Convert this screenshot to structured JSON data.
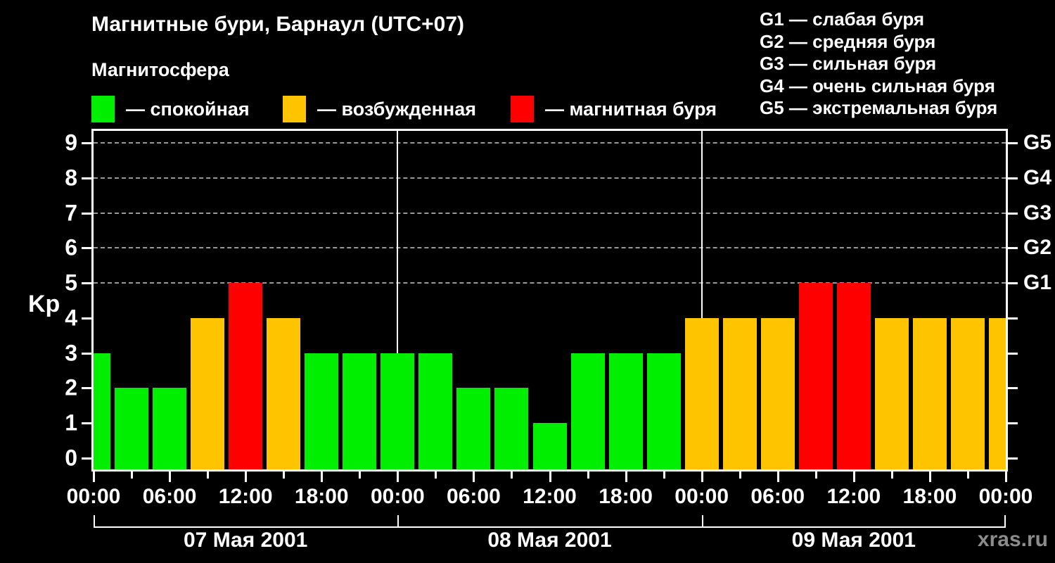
{
  "title": "Магнитные бури, Барнаул (UTC+07)",
  "subtitle": "Магнитосфера",
  "legend": {
    "items": [
      {
        "key": "quiet",
        "label": "— спокойная",
        "color": "#00ee00"
      },
      {
        "key": "excited",
        "label": "— возбужденная",
        "color": "#ffc400"
      },
      {
        "key": "storm",
        "label": "— магнитная буря",
        "color": "#ff0000"
      }
    ]
  },
  "storm_scale": [
    "G1 — слабая буря",
    "G2 — средняя буря",
    "G3 — сильная буря",
    "G4 — очень сильная буря",
    "G5 — экстремальная буря"
  ],
  "watermark": "xras.ru",
  "chart_data": {
    "type": "bar",
    "title": "Магнитные бури, Барнаул (UTC+07)",
    "ylabel": "Kp",
    "ylim": [
      0,
      9
    ],
    "x_unit": "hours from 07 Мая 2001 00:00 local (UTC+07)",
    "bar_interval_hours": 3,
    "bar_center_hours": [
      0,
      3,
      6,
      9,
      12,
      15,
      18,
      21,
      24,
      27,
      30,
      33,
      36,
      39,
      42,
      45,
      48,
      51,
      54,
      57,
      60,
      63,
      66,
      69,
      72
    ],
    "kp_values": [
      3,
      2,
      2,
      4,
      5,
      4,
      3,
      3,
      3,
      3,
      2,
      2,
      1,
      3,
      3,
      3,
      4,
      4,
      4,
      5,
      5,
      4,
      4,
      4,
      4
    ],
    "colors": {
      "quiet": "#00ee00",
      "excited": "#ffc400",
      "storm": "#ff0000"
    },
    "color_rules": {
      "quiet_max": 3,
      "excited_value": 4,
      "storm_min": 5
    },
    "grid": "dashed horizontal at Kp 5–9",
    "grid_levels": [
      5,
      6,
      7,
      8,
      9
    ],
    "ytick_labels": [
      "0",
      "1",
      "2",
      "3",
      "4",
      "5",
      "6",
      "7",
      "8",
      "9"
    ],
    "right_labels": [
      {
        "value": 5,
        "label": "G1"
      },
      {
        "value": 6,
        "label": "G2"
      },
      {
        "value": 7,
        "label": "G3"
      },
      {
        "value": 8,
        "label": "G4"
      },
      {
        "value": 9,
        "label": "G5"
      }
    ],
    "xtick_minor_step_hours": 3,
    "xtick_major_hours": [
      0,
      6,
      12,
      18,
      24,
      30,
      36,
      42,
      48,
      54,
      60,
      66,
      72
    ],
    "xtick_labels": [
      "00:00",
      "06:00",
      "12:00",
      "18:00",
      "00:00",
      "06:00",
      "12:00",
      "18:00",
      "00:00",
      "06:00",
      "12:00",
      "18:00",
      "00:00"
    ],
    "day_boundary_hours": [
      24,
      48
    ],
    "day_labels": [
      {
        "label": "07 Мая 2001",
        "start_hour": 0
      },
      {
        "label": "08 Мая 2001",
        "start_hour": 24
      },
      {
        "label": "09 Мая 2001",
        "start_hour": 48
      }
    ],
    "legend_position": "top-left",
    "background": "#000000"
  }
}
